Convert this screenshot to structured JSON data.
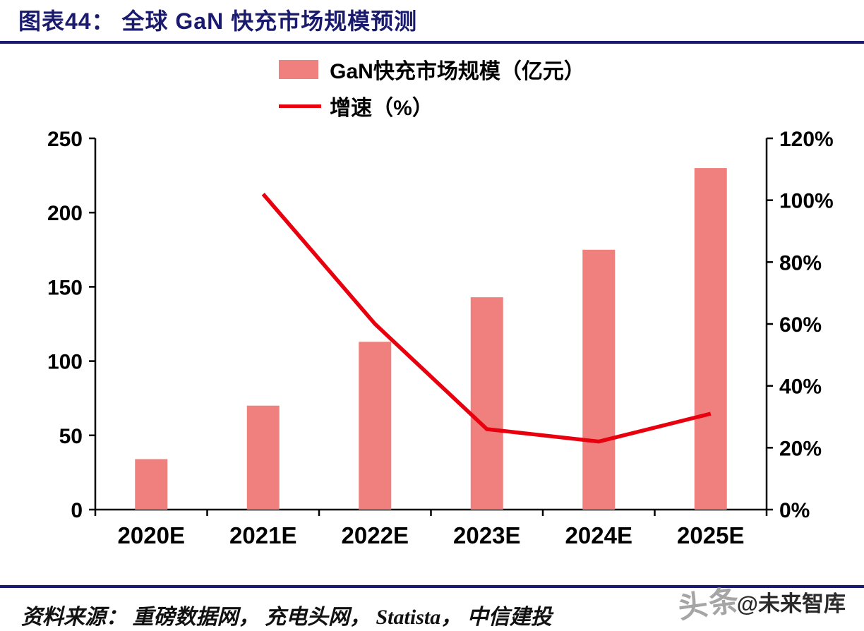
{
  "header": {
    "title": "图表44：  全球 GaN 快充市场规模预测"
  },
  "legend": [
    {
      "label": "GaN快充市场规模（亿元）",
      "type": "bar",
      "color": "#f0807e"
    },
    {
      "label": "增速（%）",
      "type": "line",
      "color": "#e8000f"
    }
  ],
  "chart_data": {
    "type": "bar+line",
    "title": "全球 GaN 快充市场规模预测",
    "categories": [
      "2020E",
      "2021E",
      "2022E",
      "2023E",
      "2024E",
      "2025E"
    ],
    "series": [
      {
        "name": "GaN快充市场规模（亿元）",
        "type": "bar",
        "axis": "left",
        "color": "#f0807e",
        "values": [
          34,
          70,
          113,
          143,
          175,
          230
        ]
      },
      {
        "name": "增速（%）",
        "type": "line",
        "axis": "right",
        "color": "#e8000f",
        "values": [
          null,
          102,
          60,
          26,
          22,
          31
        ]
      }
    ],
    "left_axis": {
      "min": 0,
      "max": 250,
      "ticks": [
        0,
        50,
        100,
        150,
        200,
        250
      ],
      "labels": [
        "0",
        "50",
        "100",
        "150",
        "200",
        "250"
      ]
    },
    "right_axis": {
      "min": 0,
      "max": 120,
      "ticks": [
        0,
        20,
        40,
        60,
        80,
        100,
        120
      ],
      "labels": [
        "0%",
        "20%",
        "40%",
        "60%",
        "80%",
        "100%",
        "120%"
      ]
    },
    "grid": false,
    "legend_position": "top-center"
  },
  "footer": {
    "source": "资料来源：  重磅数据网，  充电头网，  Statista，  中信建投",
    "watermark_back": "头条",
    "watermark_front": "@未来智库"
  },
  "colors": {
    "accent_navy": "#1a1a6e",
    "bar": "#f0807e",
    "line": "#e8000f",
    "axis": "#000000"
  }
}
